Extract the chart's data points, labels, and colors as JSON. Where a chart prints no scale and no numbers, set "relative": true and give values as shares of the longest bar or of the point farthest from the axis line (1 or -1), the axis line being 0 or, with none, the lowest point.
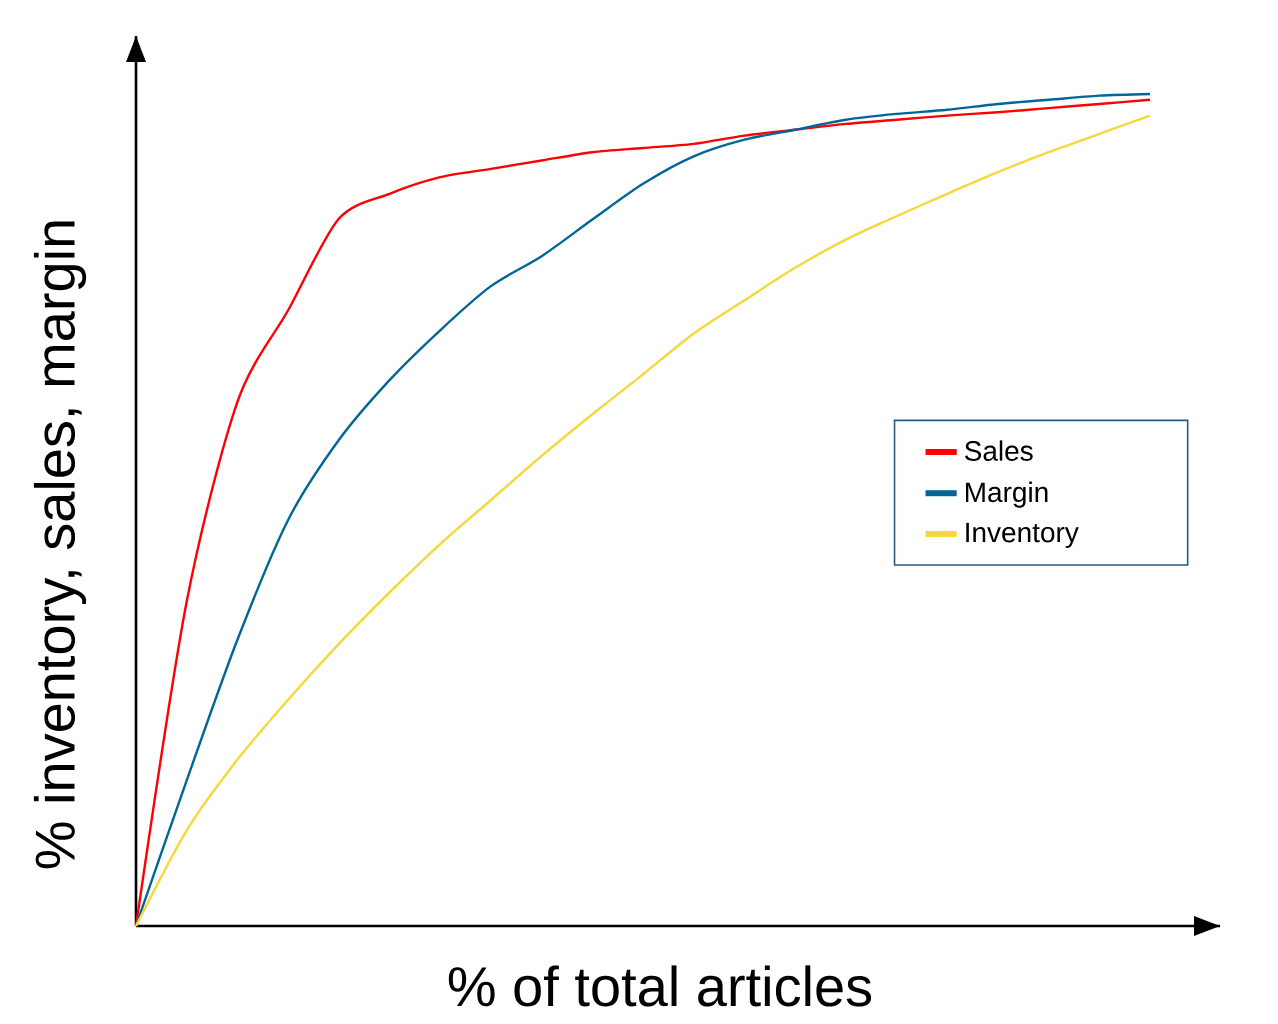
{
  "chart_data": {
    "type": "line",
    "relative": true,
    "xlabel": "% of total articles",
    "ylabel": "% inventory, sales, margin",
    "categories": [
      null,
      null,
      null,
      null,
      null,
      null,
      null,
      null,
      null,
      null,
      null,
      null,
      null,
      null,
      null,
      null,
      null,
      null,
      null,
      null,
      null
    ],
    "series": [
      {
        "name": "Sales",
        "color": "#ff0000",
        "values": [
          0,
          0.39,
          0.63,
          0.74,
          0.85,
          0.88,
          0.9,
          0.91,
          0.92,
          0.93,
          0.935,
          0.94,
          0.95,
          0.957,
          0.964,
          0.969,
          0.974,
          0.978,
          0.983,
          0.988,
          0.993
        ]
      },
      {
        "name": "Margin",
        "color": "#006699",
        "values": [
          0,
          0.175,
          0.344,
          0.488,
          0.584,
          0.656,
          0.716,
          0.769,
          0.805,
          0.849,
          0.892,
          0.925,
          0.945,
          0.957,
          0.969,
          0.976,
          0.981,
          0.988,
          0.993,
          0.998,
          1
        ]
      },
      {
        "name": "Inventory",
        "color": "#f5d83a",
        "values": [
          0,
          0.115,
          0.2,
          0.272,
          0.339,
          0.401,
          0.459,
          0.512,
          0.565,
          0.615,
          0.663,
          0.712,
          0.752,
          0.791,
          0.825,
          0.853,
          0.88,
          0.906,
          0.93,
          0.952,
          0.974
        ]
      }
    ],
    "legend": "right",
    "marker": "none",
    "line_style": "solid"
  }
}
